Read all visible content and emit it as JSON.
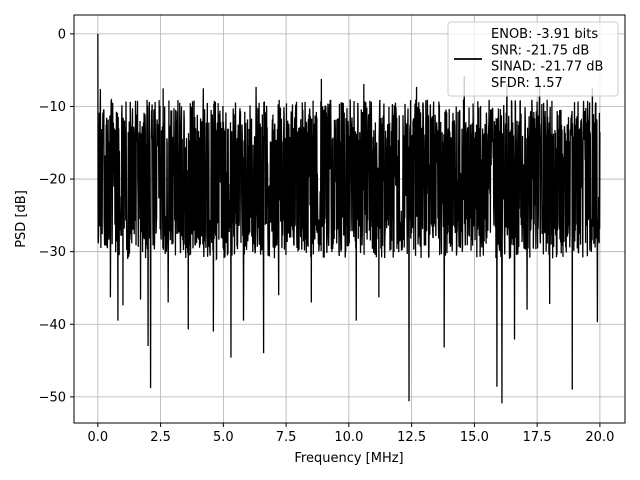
{
  "chart_data": {
    "type": "line",
    "title": "",
    "xlabel": "Frequency [MHz]",
    "ylabel": "PSD [dB]",
    "xlim": [
      -0.95,
      21.0
    ],
    "ylim": [
      -53.6,
      2.6
    ],
    "x_ticks": [
      0,
      2.5,
      5,
      7.5,
      10,
      12.5,
      15,
      17.5,
      20
    ],
    "x_tick_labels": [
      "0.0",
      "2.5",
      "5.0",
      "7.5",
      "10.0",
      "12.5",
      "15.0",
      "17.5",
      "20.0"
    ],
    "y_ticks": [
      0,
      -10,
      -20,
      -30,
      -40,
      -50
    ],
    "y_tick_labels": [
      "0",
      "−10",
      "−20",
      "−30",
      "−40",
      "−50"
    ],
    "grid": true,
    "line_color": "#000000",
    "legend": {
      "location": "top-right",
      "lines": [
        "ENOB: -3.91 bits",
        "SNR: -21.75 dB",
        "SINAD: -21.77 dB",
        "SFDR: 1.57"
      ]
    },
    "series": [
      {
        "x_range": [
          0,
          20
        ],
        "n_points": 2000,
        "noise_floor_range": [
          -28,
          -12
        ],
        "peak": {
          "x": 0.0,
          "y": 0.0
        },
        "dips": [
          {
            "x": 0.5,
            "y": -36.3
          },
          {
            "x": 0.8,
            "y": -39.5
          },
          {
            "x": 1.0,
            "y": -37.4
          },
          {
            "x": 1.7,
            "y": -36.6
          },
          {
            "x": 2.0,
            "y": -43.0
          },
          {
            "x": 2.1,
            "y": -48.8
          },
          {
            "x": 2.8,
            "y": -37.0
          },
          {
            "x": 3.6,
            "y": -40.7
          },
          {
            "x": 4.6,
            "y": -41.0
          },
          {
            "x": 5.3,
            "y": -44.6
          },
          {
            "x": 5.8,
            "y": -39.5
          },
          {
            "x": 6.6,
            "y": -44.0
          },
          {
            "x": 7.2,
            "y": -36.0
          },
          {
            "x": 8.5,
            "y": -37.0
          },
          {
            "x": 10.3,
            "y": -39.5
          },
          {
            "x": 11.2,
            "y": -36.3
          },
          {
            "x": 12.4,
            "y": -50.6
          },
          {
            "x": 12.7,
            "y": -40.7
          },
          {
            "x": 13.8,
            "y": -43.2
          },
          {
            "x": 15.9,
            "y": -48.6
          },
          {
            "x": 16.1,
            "y": -50.9
          },
          {
            "x": 16.6,
            "y": -42.1
          },
          {
            "x": 17.1,
            "y": -38.0
          },
          {
            "x": 18.0,
            "y": -37.2
          },
          {
            "x": 18.9,
            "y": -49.0
          },
          {
            "x": 19.9,
            "y": -39.7
          }
        ],
        "spikes": [
          {
            "x": 0.1,
            "y": -7.6
          },
          {
            "x": 2.6,
            "y": -7.5
          },
          {
            "x": 4.2,
            "y": -7.5
          },
          {
            "x": 6.3,
            "y": -7.3
          },
          {
            "x": 8.9,
            "y": -6.2
          },
          {
            "x": 10.6,
            "y": -6.9
          },
          {
            "x": 12.7,
            "y": -7.3
          },
          {
            "x": 14.6,
            "y": -5.8
          },
          {
            "x": 16.3,
            "y": -6.9
          },
          {
            "x": 17.6,
            "y": -7.1
          },
          {
            "x": 19.7,
            "y": -7.4
          }
        ]
      }
    ]
  }
}
